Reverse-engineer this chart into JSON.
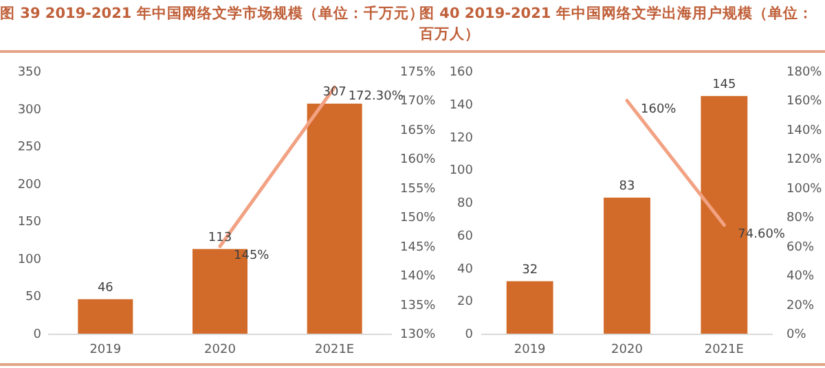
{
  "chart_data": [
    {
      "type": "bar",
      "title": "图 39 2019-2021 年中国网络文学市场规模（单位：千万元）",
      "categories": [
        "2019",
        "2020",
        "2021E"
      ],
      "data_labels": true,
      "grid": false,
      "series": [
        {
          "color": "#d26b29",
          "values": [
            46,
            113,
            307
          ]
        },
        {
          "type": "line",
          "axis": "y2",
          "color": "#f2a283",
          "values": [
            null,
            145,
            172.3
          ],
          "value_labels": [
            null,
            "145%",
            "172.30%"
          ]
        }
      ],
      "ylim": [
        0,
        350
      ],
      "yticks": [
        0,
        50,
        100,
        150,
        200,
        250,
        300,
        350
      ],
      "y2lim": [
        130,
        175
      ],
      "y2ticks": [
        {
          "value": 130,
          "label": "130%"
        },
        {
          "value": 135,
          "label": "135%"
        },
        {
          "value": 140,
          "label": "140%"
        },
        {
          "value": 145,
          "label": "145%"
        },
        {
          "value": 150,
          "label": "150%"
        },
        {
          "value": 155,
          "label": "155%"
        },
        {
          "value": 160,
          "label": "160%"
        },
        {
          "value": 165,
          "label": "165%"
        },
        {
          "value": 170,
          "label": "170%"
        },
        {
          "value": 175,
          "label": "175%"
        }
      ]
    },
    {
      "type": "bar",
      "title": "图 40 2019-2021 年中国网络文学出海用户规模（单位：百万人）",
      "categories": [
        "2019",
        "2020",
        "2021E"
      ],
      "data_labels": true,
      "grid": false,
      "series": [
        {
          "color": "#d26b29",
          "values": [
            32,
            83,
            145
          ]
        },
        {
          "type": "line",
          "axis": "y2",
          "color": "#f2a283",
          "values": [
            null,
            160,
            74.6
          ],
          "value_labels": [
            null,
            "160%",
            "74.60%"
          ]
        }
      ],
      "ylim": [
        0,
        160
      ],
      "yticks": [
        0,
        20,
        40,
        60,
        80,
        100,
        120,
        140,
        160
      ],
      "y2lim": [
        0,
        180
      ],
      "y2ticks": [
        {
          "value": 0,
          "label": "0%"
        },
        {
          "value": 20,
          "label": "20%"
        },
        {
          "value": 40,
          "label": "40%"
        },
        {
          "value": 60,
          "label": "60%"
        },
        {
          "value": 80,
          "label": "80%"
        },
        {
          "value": 100,
          "label": "100%"
        },
        {
          "value": 120,
          "label": "120%"
        },
        {
          "value": 140,
          "label": "140%"
        },
        {
          "value": 160,
          "label": "160%"
        },
        {
          "value": 180,
          "label": "180%"
        }
      ]
    }
  ]
}
